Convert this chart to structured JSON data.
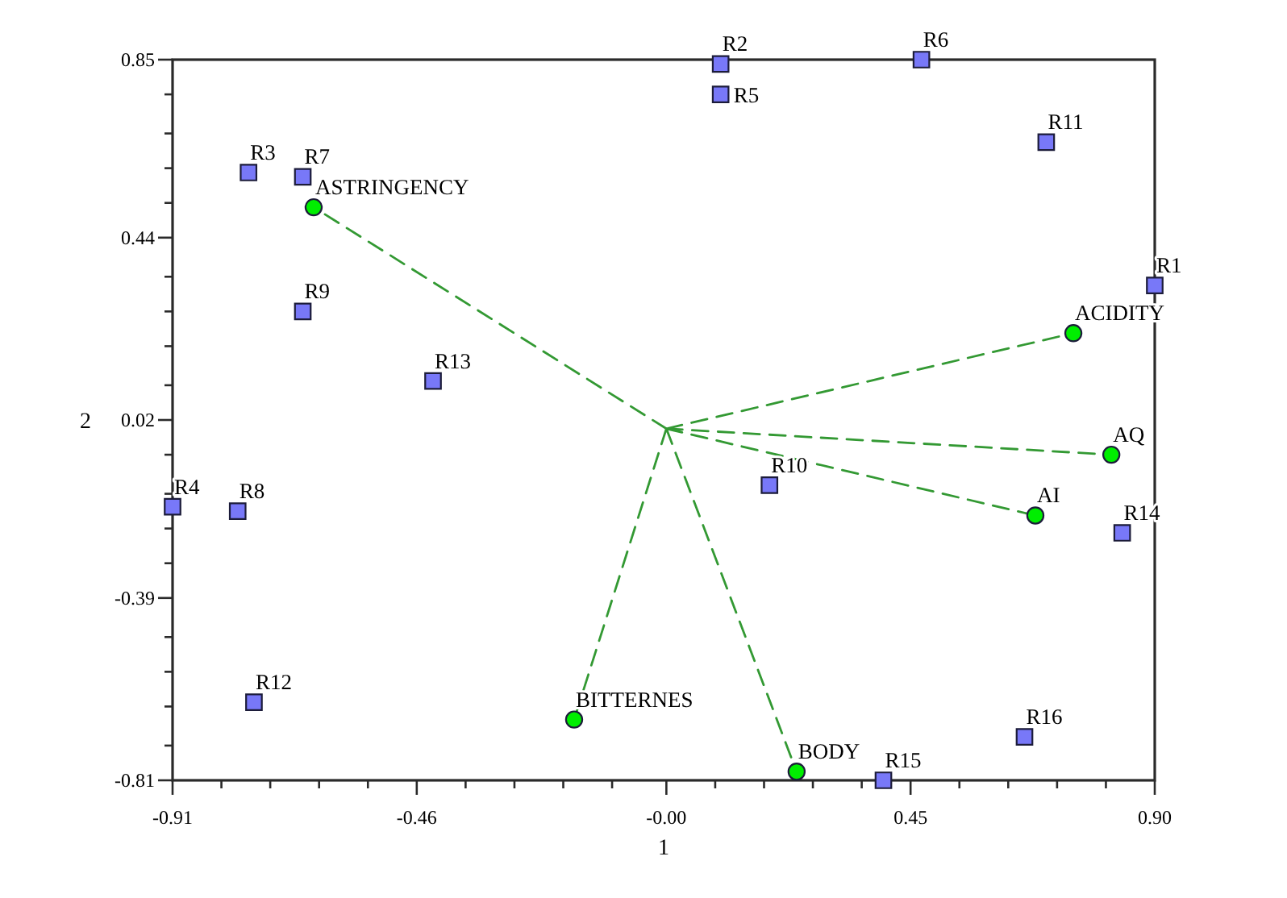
{
  "chart_data": {
    "type": "scatter",
    "xlabel": "1",
    "ylabel": "2",
    "xlim": [
      -0.91,
      0.9
    ],
    "ylim": [
      -0.81,
      0.85
    ],
    "xticks": [
      -0.91,
      {
        "value": -0.82,
        "label": null
      },
      {
        "value": -0.73,
        "label": null
      },
      {
        "value": -0.64,
        "label": null
      },
      {
        "value": -0.55,
        "label": null
      },
      -0.46,
      {
        "value": -0.37,
        "label": null
      },
      {
        "value": -0.28,
        "label": null
      },
      {
        "value": -0.19,
        "label": null
      },
      {
        "value": -0.1,
        "label": null
      },
      {
        "value": 0,
        "label": "-0.00"
      },
      {
        "value": 0.09,
        "label": null
      },
      {
        "value": 0.18,
        "label": null
      },
      {
        "value": 0.27,
        "label": null
      },
      {
        "value": 0.36,
        "label": null
      },
      0.45,
      {
        "value": 0.54,
        "label": null
      },
      {
        "value": 0.63,
        "label": null
      },
      {
        "value": 0.72,
        "label": null
      },
      {
        "value": 0.81,
        "label": null
      },
      {
        "value": 0.9,
        "label": "0.90"
      }
    ],
    "yticks": [
      -0.81,
      {
        "value": -0.73,
        "label": null
      },
      {
        "value": -0.64,
        "label": null
      },
      {
        "value": -0.56,
        "label": null
      },
      {
        "value": -0.48,
        "label": null
      },
      -0.39,
      {
        "value": -0.31,
        "label": null
      },
      {
        "value": -0.23,
        "label": null
      },
      {
        "value": -0.15,
        "label": null
      },
      {
        "value": -0.06,
        "label": null
      },
      0.02,
      {
        "value": 0.1,
        "label": null
      },
      {
        "value": 0.19,
        "label": null
      },
      {
        "value": 0.27,
        "label": null
      },
      {
        "value": 0.35,
        "label": null
      },
      0.44,
      {
        "value": 0.52,
        "label": null
      },
      {
        "value": 0.6,
        "label": null
      },
      {
        "value": 0.68,
        "label": null
      },
      {
        "value": 0.77,
        "label": null
      },
      0.85
    ],
    "series": [
      {
        "type": "line",
        "color": "#339933",
        "line_style": "dashed",
        "marker": "none",
        "x": [
          0,
          -0.65,
          null,
          0,
          0.75,
          null,
          0,
          0.82,
          null,
          0,
          0.68,
          null,
          0,
          0.24,
          null,
          0,
          -0.17
        ],
        "values": [
          0,
          0.51,
          null,
          0,
          0.22,
          null,
          0,
          -0.06,
          null,
          0,
          -0.2,
          null,
          0,
          -0.79,
          null,
          0,
          -0.67
        ]
      },
      {
        "type": "scatter",
        "color": "#00ee00",
        "marker": "circle",
        "x": [
          -0.65,
          0.75,
          0.82,
          0.68,
          0.24,
          -0.17
        ],
        "values": [
          0.51,
          0.22,
          -0.06,
          -0.2,
          -0.79,
          -0.67
        ]
      },
      {
        "type": "scatter",
        "color": "#7878f8",
        "marker": "square",
        "x": [
          0.9,
          0.1,
          -0.77,
          -0.91,
          0.1,
          0.47,
          -0.67,
          -0.79,
          -0.67,
          0.19,
          0.7,
          -0.76,
          -0.43,
          0.84,
          0.4,
          0.66
        ],
        "values": [
          0.33,
          0.84,
          0.59,
          -0.18,
          0.77,
          0.85,
          0.58,
          -0.19,
          0.27,
          -0.13,
          0.66,
          -0.63,
          0.11,
          -0.24,
          -0.81,
          -0.71
        ]
      }
    ],
    "annotations": [
      {
        "text": "ASTRINGENCY",
        "x": -0.65,
        "y": 0.51
      },
      {
        "text": "ACIDITY",
        "x": 0.75,
        "y": 0.22
      },
      {
        "text": "AQ",
        "x": 0.82,
        "y": -0.06
      },
      {
        "text": "AI",
        "x": 0.68,
        "y": -0.2
      },
      {
        "text": "BODY",
        "x": 0.24,
        "y": -0.79
      },
      {
        "text": "BITTERNES",
        "x": -0.17,
        "y": -0.67
      },
      {
        "text": "R1",
        "x": 0.9,
        "y": 0.33
      },
      {
        "text": "R2",
        "x": 0.1,
        "y": 0.84
      },
      {
        "text": "R3",
        "x": -0.77,
        "y": 0.59
      },
      {
        "text": "R4",
        "x": -0.91,
        "y": -0.18
      },
      {
        "text": "R5",
        "x": 0.1,
        "y": 0.77
      },
      {
        "text": "R6",
        "x": 0.47,
        "y": 0.85
      },
      {
        "text": "R7",
        "x": -0.67,
        "y": 0.58
      },
      {
        "text": "R8",
        "x": -0.79,
        "y": -0.19
      },
      {
        "text": "R9",
        "x": -0.67,
        "y": 0.27
      },
      {
        "text": "R10",
        "x": 0.19,
        "y": -0.13
      },
      {
        "text": "R11",
        "x": 0.7,
        "y": 0.66
      },
      {
        "text": "R12",
        "x": -0.76,
        "y": -0.63
      },
      {
        "text": "R13",
        "x": -0.43,
        "y": 0.11
      },
      {
        "text": "R14",
        "x": 0.84,
        "y": -0.24
      },
      {
        "text": "R15",
        "x": 0.4,
        "y": -0.81
      },
      {
        "text": "R16",
        "x": 0.66,
        "y": -0.71
      }
    ]
  }
}
